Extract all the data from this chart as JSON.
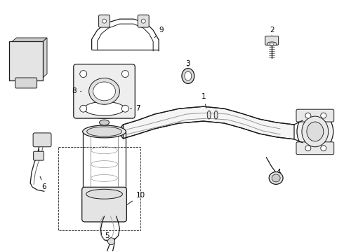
{
  "background_color": "#ffffff",
  "line_color": "#1a1a1a",
  "label_color": "#000000",
  "lw": 0.9,
  "fs": 7.5
}
